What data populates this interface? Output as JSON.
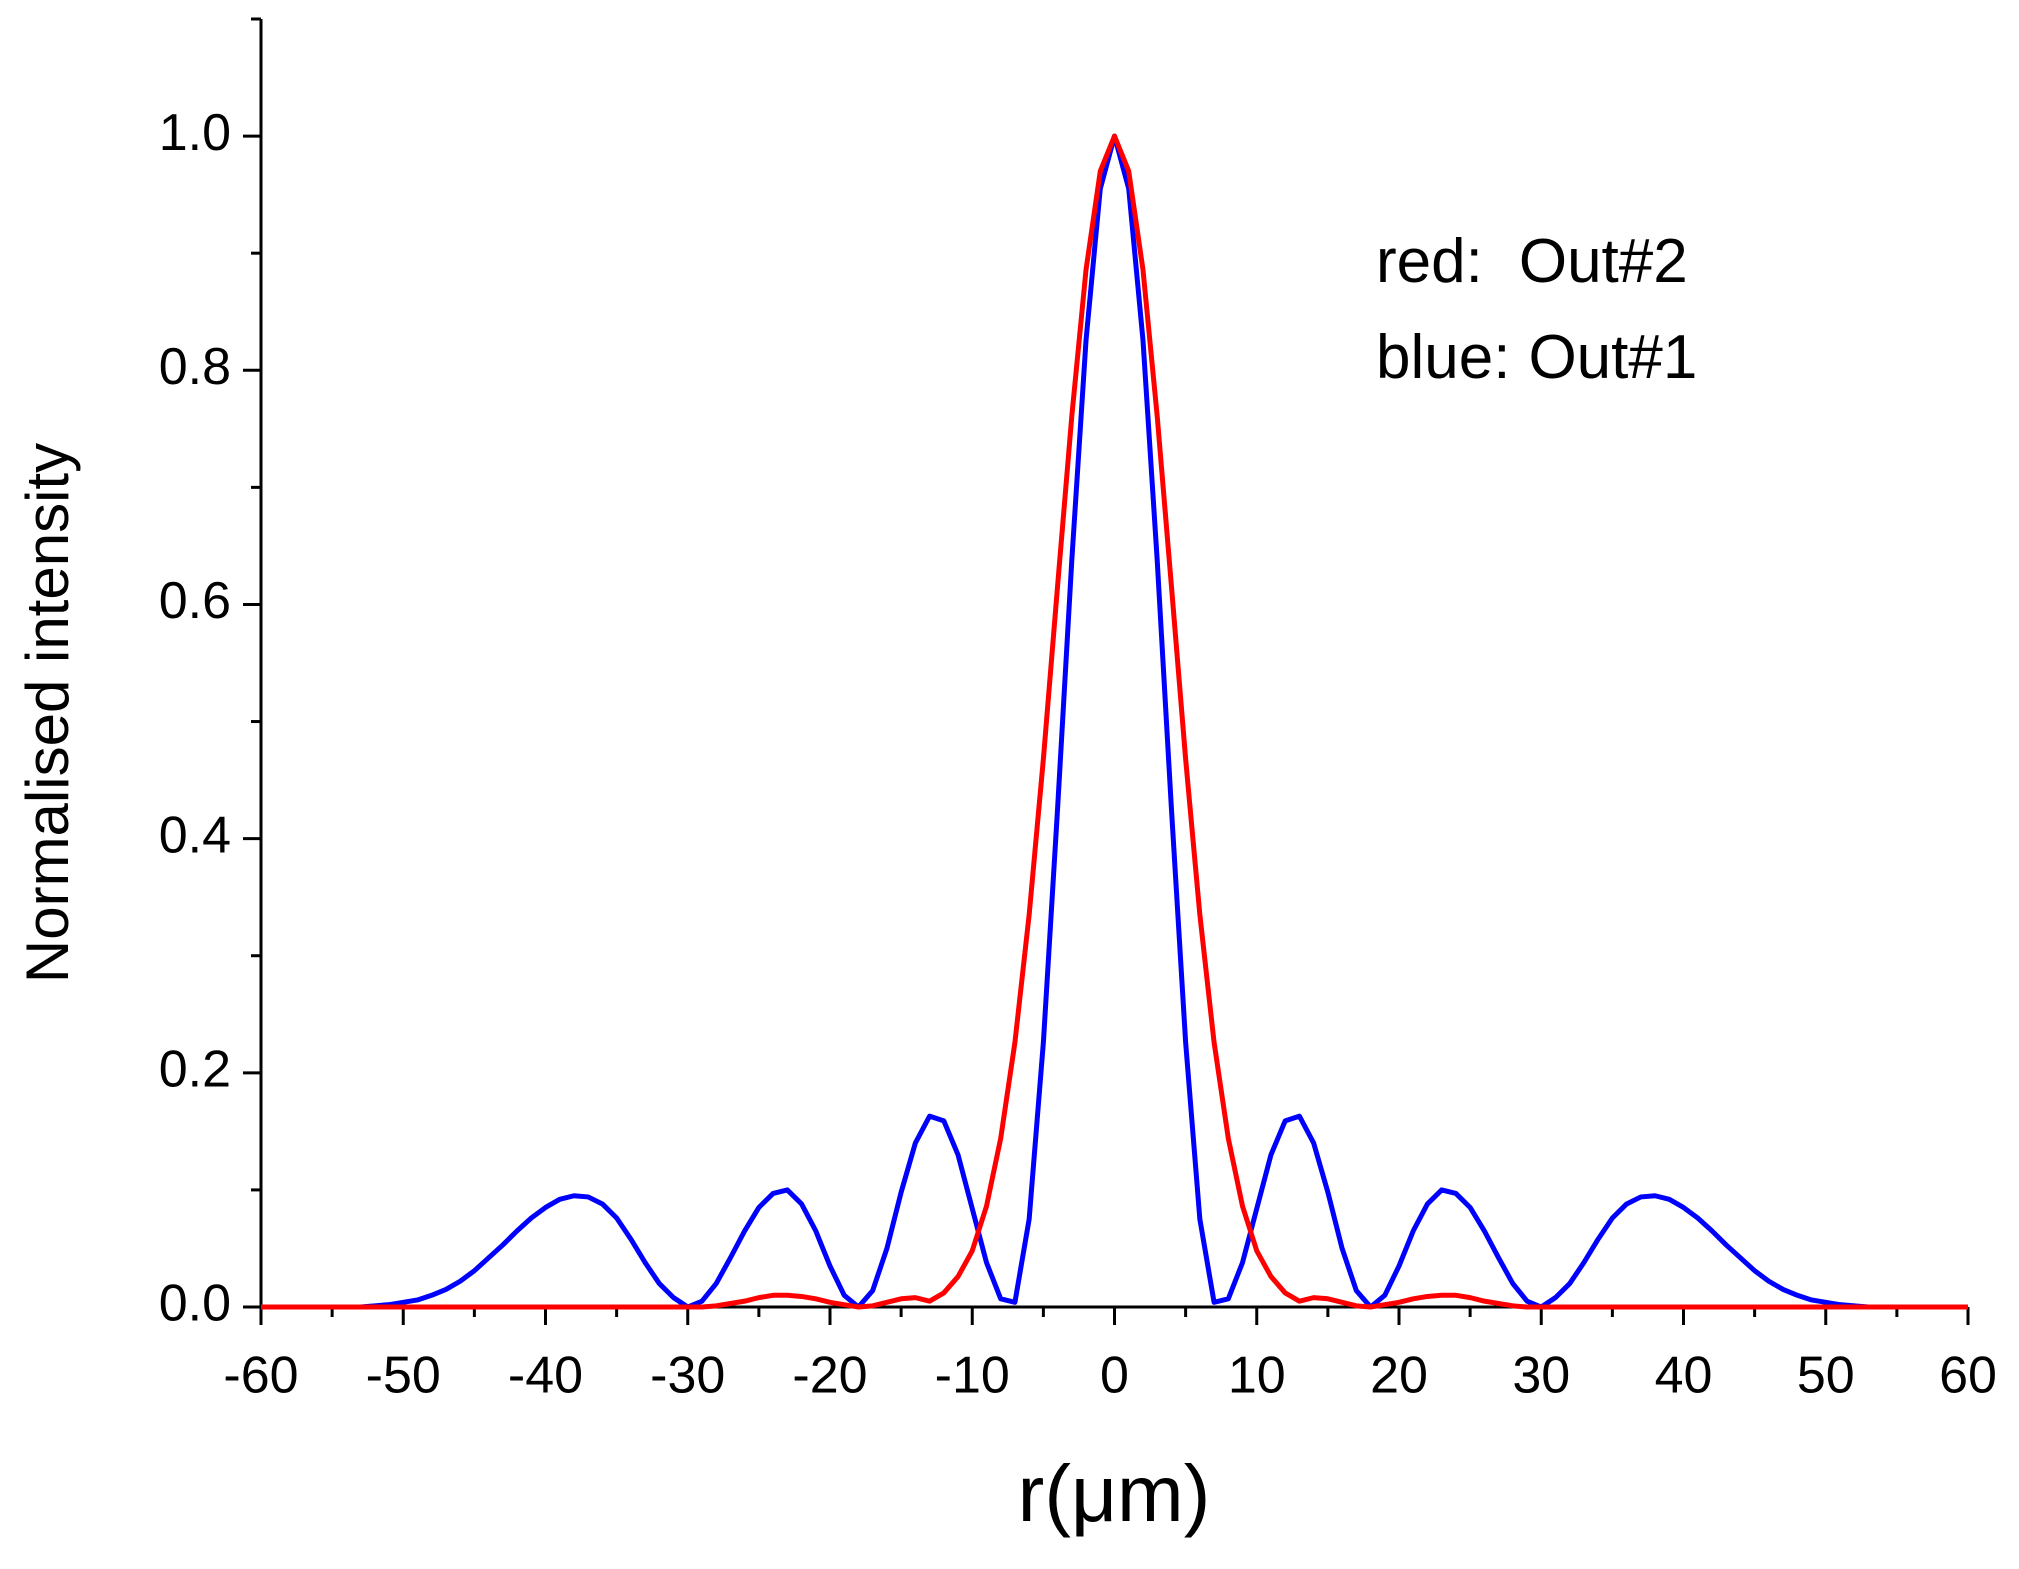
{
  "chart_data": {
    "type": "line",
    "xlabel": "r(μm)",
    "ylabel": "Normalised intensity",
    "x": [
      -60,
      -59,
      -58,
      -57,
      -56,
      -55,
      -54,
      -53,
      -52,
      -51,
      -50,
      -49,
      -48,
      -47,
      -46,
      -45,
      -44,
      -43,
      -42,
      -41,
      -40,
      -39,
      -38,
      -37,
      -36,
      -35,
      -34,
      -33,
      -32,
      -31,
      -30,
      -29,
      -28,
      -27,
      -26,
      -25,
      -24,
      -23,
      -22,
      -21,
      -20,
      -19,
      -18,
      -17,
      -16,
      -15,
      -14,
      -13,
      -12,
      -11,
      -10,
      -9,
      -8,
      -7,
      -6,
      -5,
      -4,
      -3,
      -2,
      -1,
      0,
      1,
      2,
      3,
      4,
      5,
      6,
      7,
      8,
      9,
      10,
      11,
      12,
      13,
      14,
      15,
      16,
      17,
      18,
      19,
      20,
      21,
      22,
      23,
      24,
      25,
      26,
      27,
      28,
      29,
      30,
      31,
      32,
      33,
      34,
      35,
      36,
      37,
      38,
      39,
      40,
      41,
      42,
      43,
      44,
      45,
      46,
      47,
      48,
      49,
      50,
      51,
      52,
      53,
      54,
      55,
      56,
      57,
      58,
      59,
      60
    ],
    "series": [
      {
        "name": "Out#1",
        "label_prefix": "blue:",
        "color": "#0000ff",
        "values": [
          0,
          0,
          0,
          0,
          0,
          0,
          0,
          0,
          0.001,
          0.002,
          0.004,
          0.006,
          0.01,
          0.015,
          0.022,
          0.031,
          0.042,
          0.053,
          0.065,
          0.076,
          0.085,
          0.092,
          0.095,
          0.094,
          0.088,
          0.076,
          0.058,
          0.038,
          0.02,
          0.008,
          0,
          0.005,
          0.02,
          0.042,
          0.065,
          0.085,
          0.097,
          0.1,
          0.088,
          0.065,
          0.035,
          0.01,
          0,
          0.014,
          0.05,
          0.098,
          0.14,
          0.163,
          0.159,
          0.13,
          0.084,
          0.038,
          0.007,
          0.004,
          0.075,
          0.226,
          0.426,
          0.638,
          0.826,
          0.955,
          1,
          0.955,
          0.826,
          0.638,
          0.426,
          0.226,
          0.075,
          0.004,
          0.007,
          0.038,
          0.084,
          0.13,
          0.159,
          0.163,
          0.14,
          0.098,
          0.05,
          0.014,
          0,
          0.01,
          0.035,
          0.065,
          0.088,
          0.1,
          0.097,
          0.085,
          0.065,
          0.042,
          0.02,
          0.005,
          0,
          0.008,
          0.02,
          0.038,
          0.058,
          0.076,
          0.088,
          0.094,
          0.095,
          0.092,
          0.085,
          0.076,
          0.065,
          0.053,
          0.042,
          0.031,
          0.022,
          0.015,
          0.01,
          0.006,
          0.004,
          0.002,
          0.001,
          0,
          0,
          0,
          0,
          0,
          0,
          0,
          0
        ]
      },
      {
        "name": "Out#2",
        "label_prefix": "red:",
        "color": "#ff0000",
        "values": [
          0,
          0,
          0,
          0,
          0,
          0,
          0,
          0,
          0,
          0,
          0,
          0,
          0,
          0,
          0,
          0,
          0,
          0,
          0,
          0,
          0,
          0,
          0,
          0,
          0,
          0,
          0,
          0,
          0,
          0,
          0,
          0,
          0.001,
          0.003,
          0.005,
          0.008,
          0.01,
          0.01,
          0.009,
          0.007,
          0.004,
          0.002,
          0,
          0.001,
          0.004,
          0.007,
          0.008,
          0.005,
          0.012,
          0.026,
          0.048,
          0.086,
          0.144,
          0.226,
          0.335,
          0.468,
          0.616,
          0.761,
          0.886,
          0.97,
          1,
          0.97,
          0.886,
          0.761,
          0.616,
          0.468,
          0.335,
          0.226,
          0.144,
          0.086,
          0.048,
          0.026,
          0.012,
          0.005,
          0.008,
          0.007,
          0.004,
          0.001,
          0,
          0.002,
          0.004,
          0.007,
          0.009,
          0.01,
          0.01,
          0.008,
          0.005,
          0.003,
          0.001,
          0,
          0,
          0,
          0,
          0,
          0,
          0,
          0,
          0,
          0,
          0,
          0,
          0,
          0,
          0,
          0,
          0,
          0,
          0,
          0,
          0,
          0,
          0,
          0,
          0,
          0,
          0,
          0,
          0,
          0,
          0,
          0
        ]
      }
    ],
    "legend_order": [
      1,
      0
    ],
    "xlim": [
      -60,
      60
    ],
    "xticks": [
      -60,
      -50,
      -40,
      -30,
      -20,
      -10,
      0,
      10,
      20,
      30,
      40,
      50,
      60
    ],
    "ylim": [
      0,
      1.1
    ],
    "yticks": [
      {
        "value": 0,
        "label": "0.0"
      },
      0.2,
      0.4,
      0.6,
      0.8,
      {
        "value": 1,
        "label": "1.0"
      }
    ],
    "minor_ticks": true,
    "grid": false
  }
}
